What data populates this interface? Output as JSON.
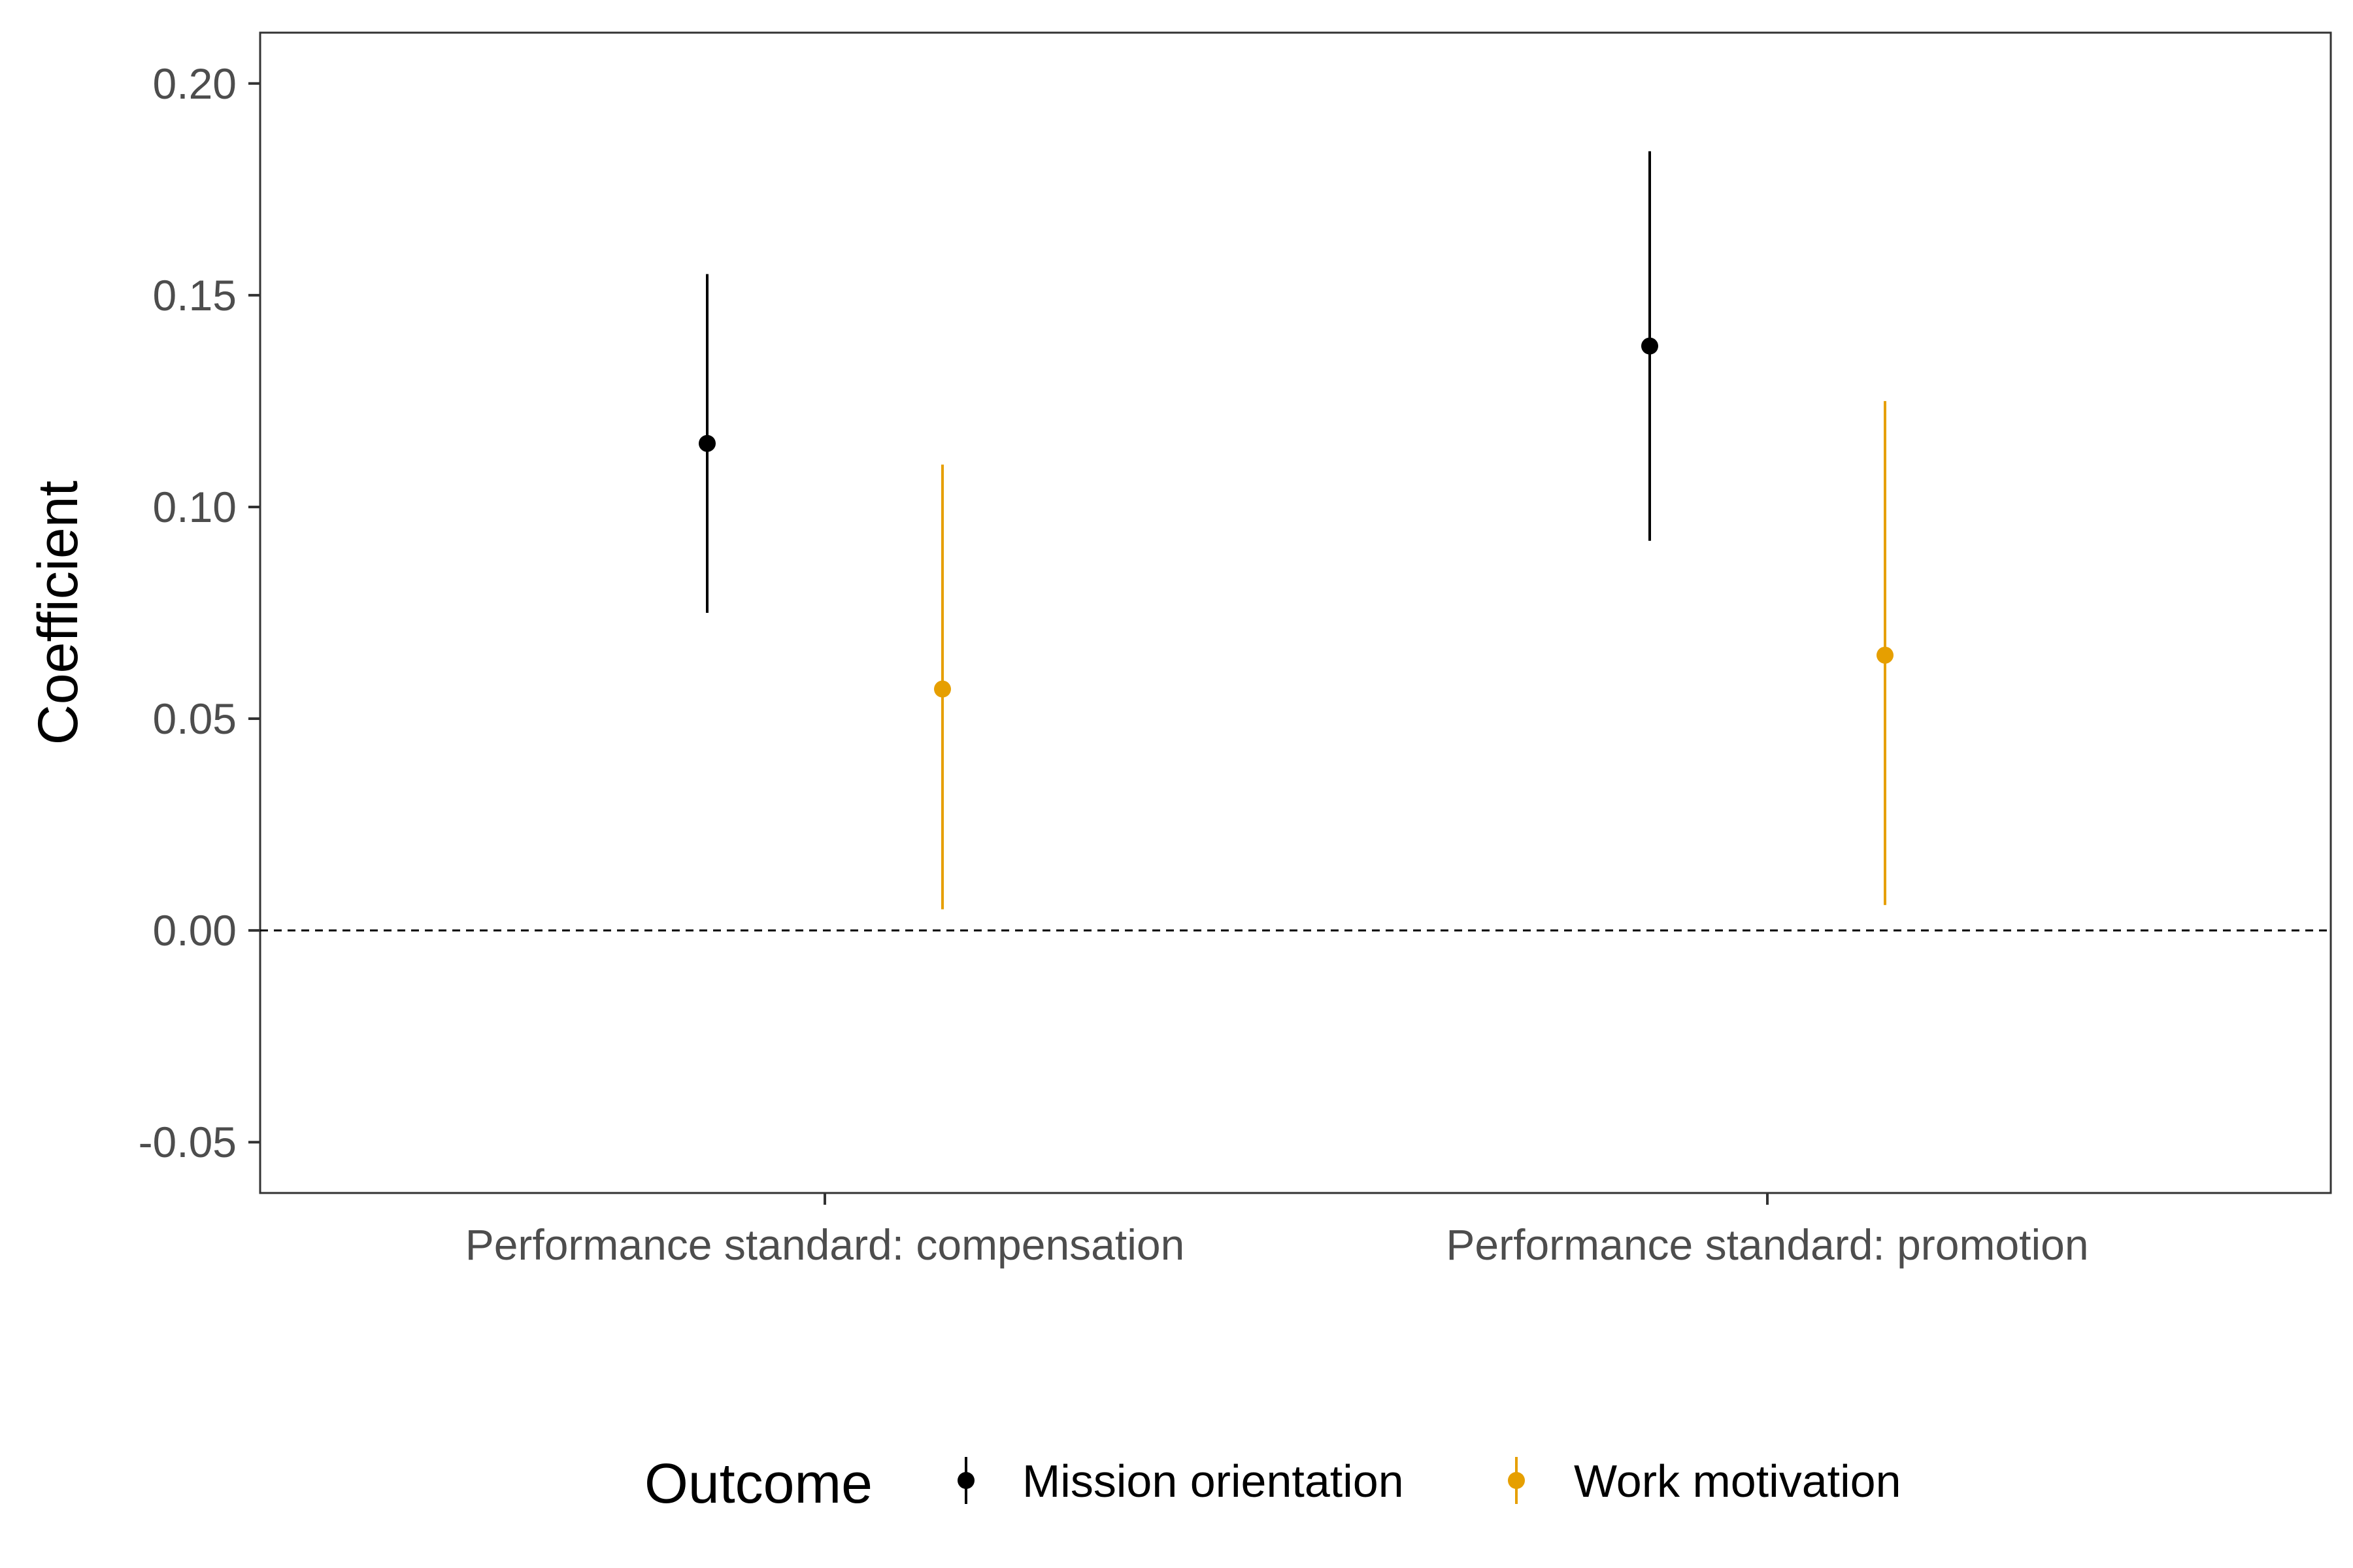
{
  "chart_data": {
    "type": "errorbar",
    "title": "",
    "xlabel": "",
    "ylabel": "Coefficient",
    "ylim": [
      -0.062,
      0.212
    ],
    "yticks": [
      -0.05,
      0.0,
      0.05,
      0.1,
      0.15,
      0.2
    ],
    "ytick_labels": [
      "-0.05",
      "0.00",
      "0.05",
      "0.10",
      "0.15",
      "0.20"
    ],
    "categories": [
      "Performance standard: compensation",
      "Performance standard: promotion"
    ],
    "reference_line": 0.0,
    "grid": false,
    "legend": {
      "title": "Outcome",
      "position": "bottom"
    },
    "series": [
      {
        "name": "Mission orientation",
        "color": "#000000",
        "points": [
          {
            "category": "Performance standard: compensation",
            "estimate": 0.115,
            "lower": 0.075,
            "upper": 0.155
          },
          {
            "category": "Performance standard: promotion",
            "estimate": 0.138,
            "lower": 0.092,
            "upper": 0.184
          }
        ]
      },
      {
        "name": "Work motivation",
        "color": "#E69F00",
        "points": [
          {
            "category": "Performance standard: compensation",
            "estimate": 0.057,
            "lower": 0.005,
            "upper": 0.11
          },
          {
            "category": "Performance standard: promotion",
            "estimate": 0.065,
            "lower": 0.006,
            "upper": 0.125
          }
        ]
      }
    ]
  }
}
